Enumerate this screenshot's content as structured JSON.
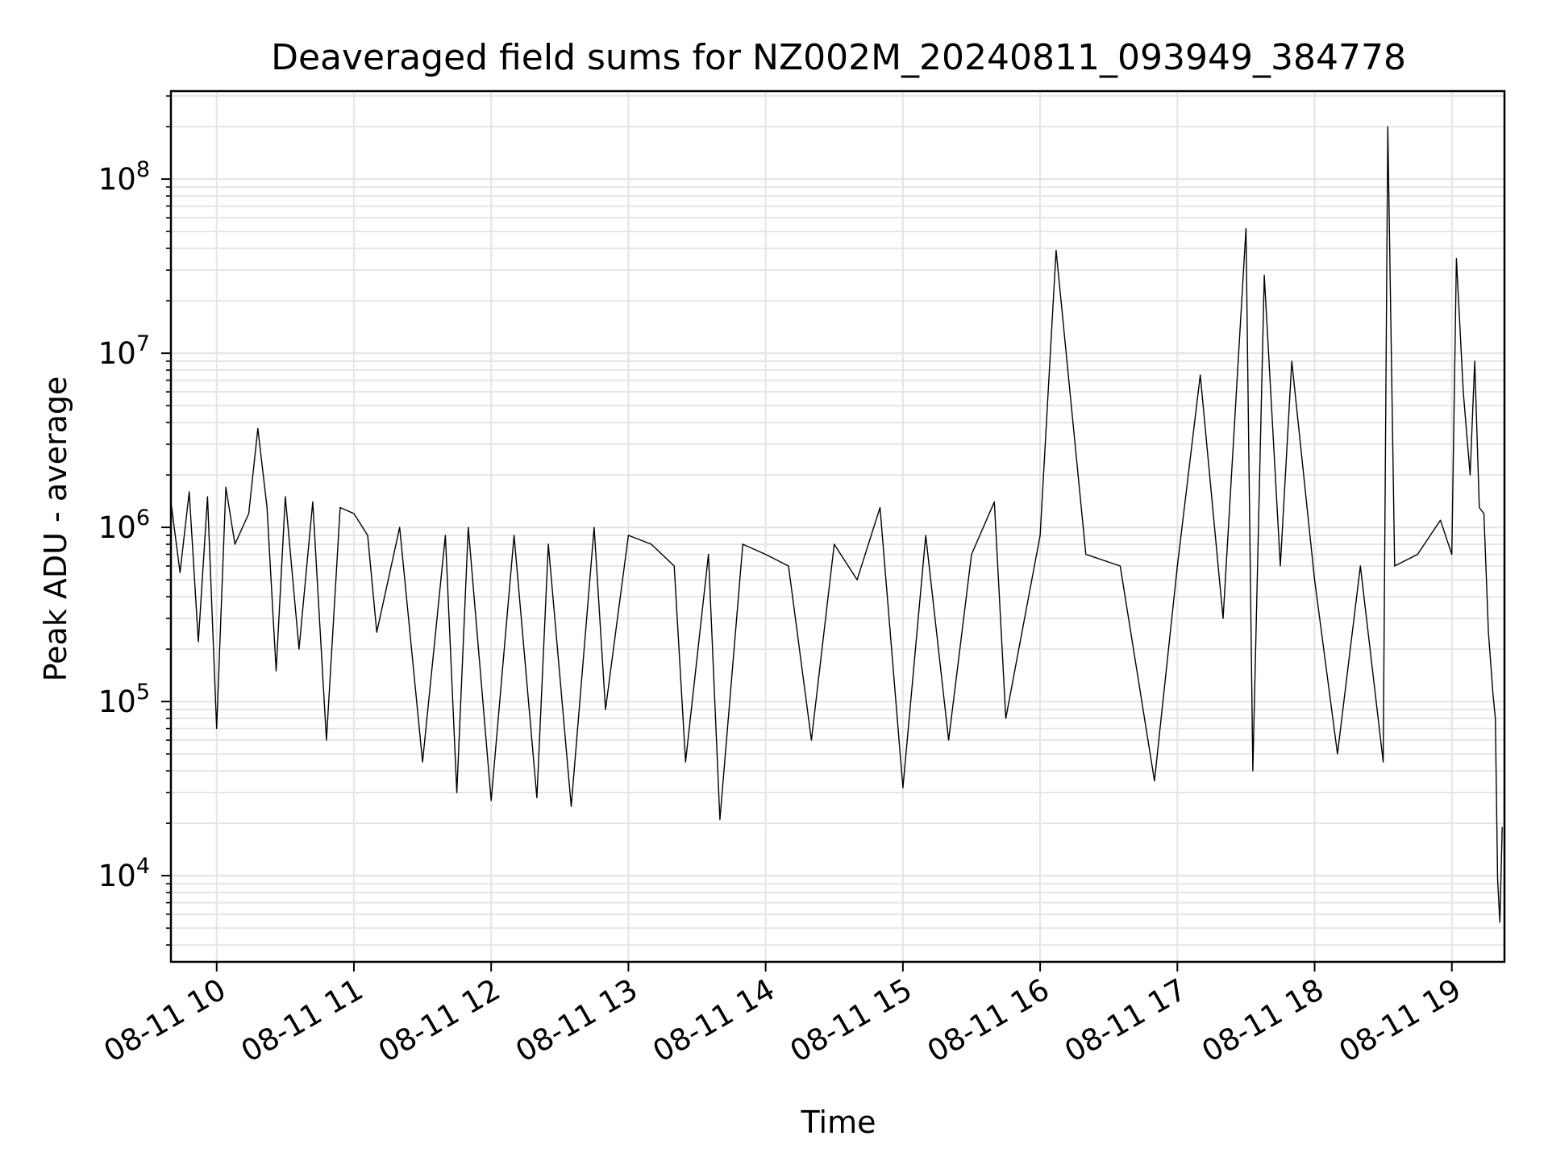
{
  "chart_data": {
    "type": "line",
    "title": "Deaveraged field sums for NZ002M_20240811_093949_384778",
    "xlabel": "Time",
    "ylabel": "Peak ADU - average",
    "xlim": [
      "2024-08-11 09:40",
      "2024-08-11 19:23"
    ],
    "ylim": [
      3200,
      320000000
    ],
    "yscale": "log",
    "grid": true,
    "line_color": "#000000",
    "grid_color": "#e6e6e6",
    "x_tick_labels": [
      "08-11 10",
      "08-11 11",
      "08-11 12",
      "08-11 13",
      "08-11 14",
      "08-11 15",
      "08-11 16",
      "08-11 17",
      "08-11 18",
      "08-11 19"
    ],
    "x_tick_values": [
      "2024-08-11 10:00",
      "2024-08-11 11:00",
      "2024-08-11 12:00",
      "2024-08-11 13:00",
      "2024-08-11 14:00",
      "2024-08-11 15:00",
      "2024-08-11 16:00",
      "2024-08-11 17:00",
      "2024-08-11 18:00",
      "2024-08-11 19:00"
    ],
    "y_ticks": [
      {
        "value": 10000,
        "base": "10",
        "exp": "4"
      },
      {
        "value": 100000,
        "base": "10",
        "exp": "5"
      },
      {
        "value": 1000000,
        "base": "10",
        "exp": "6"
      },
      {
        "value": 10000000,
        "base": "10",
        "exp": "7"
      },
      {
        "value": 100000000,
        "base": "10",
        "exp": "8"
      }
    ],
    "series": [
      {
        "x": [
          "2024-08-11 09:40",
          "2024-08-11 09:44",
          "2024-08-11 09:48",
          "2024-08-11 09:52",
          "2024-08-11 09:56",
          "2024-08-11 10:00",
          "2024-08-11 10:04",
          "2024-08-11 10:08",
          "2024-08-11 10:14",
          "2024-08-11 10:18",
          "2024-08-11 10:22",
          "2024-08-11 10:26",
          "2024-08-11 10:30",
          "2024-08-11 10:36",
          "2024-08-11 10:42",
          "2024-08-11 10:48",
          "2024-08-11 10:54",
          "2024-08-11 11:00",
          "2024-08-11 11:06",
          "2024-08-11 11:10",
          "2024-08-11 11:20",
          "2024-08-11 11:30",
          "2024-08-11 11:40",
          "2024-08-11 11:45",
          "2024-08-11 11:50",
          "2024-08-11 12:00",
          "2024-08-11 12:10",
          "2024-08-11 12:20",
          "2024-08-11 12:25",
          "2024-08-11 12:35",
          "2024-08-11 12:45",
          "2024-08-11 12:50",
          "2024-08-11 13:00",
          "2024-08-11 13:10",
          "2024-08-11 13:20",
          "2024-08-11 13:25",
          "2024-08-11 13:35",
          "2024-08-11 13:40",
          "2024-08-11 13:50",
          "2024-08-11 14:00",
          "2024-08-11 14:10",
          "2024-08-11 14:20",
          "2024-08-11 14:30",
          "2024-08-11 14:40",
          "2024-08-11 14:50",
          "2024-08-11 15:00",
          "2024-08-11 15:10",
          "2024-08-11 15:20",
          "2024-08-11 15:30",
          "2024-08-11 15:40",
          "2024-08-11 15:45",
          "2024-08-11 16:00",
          "2024-08-11 16:07",
          "2024-08-11 16:20",
          "2024-08-11 16:35",
          "2024-08-11 16:50",
          "2024-08-11 17:00",
          "2024-08-11 17:10",
          "2024-08-11 17:20",
          "2024-08-11 17:30",
          "2024-08-11 17:33",
          "2024-08-11 17:38",
          "2024-08-11 17:45",
          "2024-08-11 17:50",
          "2024-08-11 18:00",
          "2024-08-11 18:10",
          "2024-08-11 18:20",
          "2024-08-11 18:30",
          "2024-08-11 18:32",
          "2024-08-11 18:35",
          "2024-08-11 18:45",
          "2024-08-11 18:55",
          "2024-08-11 19:00",
          "2024-08-11 19:02",
          "2024-08-11 19:05",
          "2024-08-11 19:08",
          "2024-08-11 19:10",
          "2024-08-11 19:12",
          "2024-08-11 19:14",
          "2024-08-11 19:16",
          "2024-08-11 19:18",
          "2024-08-11 19:19",
          "2024-08-11 19:20",
          "2024-08-11 19:21",
          "2024-08-11 19:22"
        ],
        "y": [
          1400000,
          550000,
          1600000,
          220000,
          1500000,
          70000,
          1700000,
          800000,
          1200000,
          3700000,
          1300000,
          150000,
          1500000,
          200000,
          1400000,
          60000,
          1300000,
          1200000,
          900000,
          250000,
          1000000,
          45000,
          900000,
          30000,
          1000000,
          27000,
          900000,
          28000,
          800000,
          25000,
          1000000,
          90000,
          900000,
          800000,
          600000,
          45000,
          700000,
          21000,
          800000,
          700000,
          600000,
          60000,
          800000,
          500000,
          1300000,
          32000,
          900000,
          60000,
          700000,
          1400000,
          80000,
          900000,
          39000000,
          700000,
          600000,
          35000,
          600000,
          7500000,
          300000,
          52000000,
          40000,
          28000000,
          600000,
          9000000,
          500000,
          50000,
          600000,
          45000,
          200000000,
          600000,
          700000,
          1100000,
          700000,
          35000000,
          6000000,
          2000000,
          9000000,
          1300000,
          1200000,
          250000,
          110000,
          80000,
          9500,
          5400,
          19000
        ]
      }
    ]
  }
}
